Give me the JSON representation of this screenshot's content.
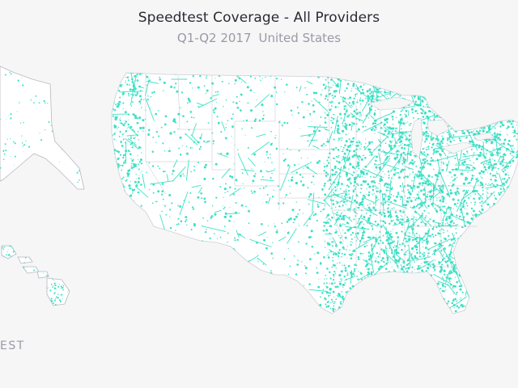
{
  "header": {
    "title": "Speedtest Coverage - All Providers",
    "period": "Q1-Q2 2017",
    "region": "United States"
  },
  "logo": {
    "text": "EST"
  },
  "map": {
    "regions": [
      "Alaska",
      "Hawaii",
      "Contiguous United States"
    ],
    "colors": {
      "coverage": "#3ee0c5",
      "background": "#f6f6f7",
      "land": "#ffffff",
      "borders": "#c9c9cf"
    }
  }
}
